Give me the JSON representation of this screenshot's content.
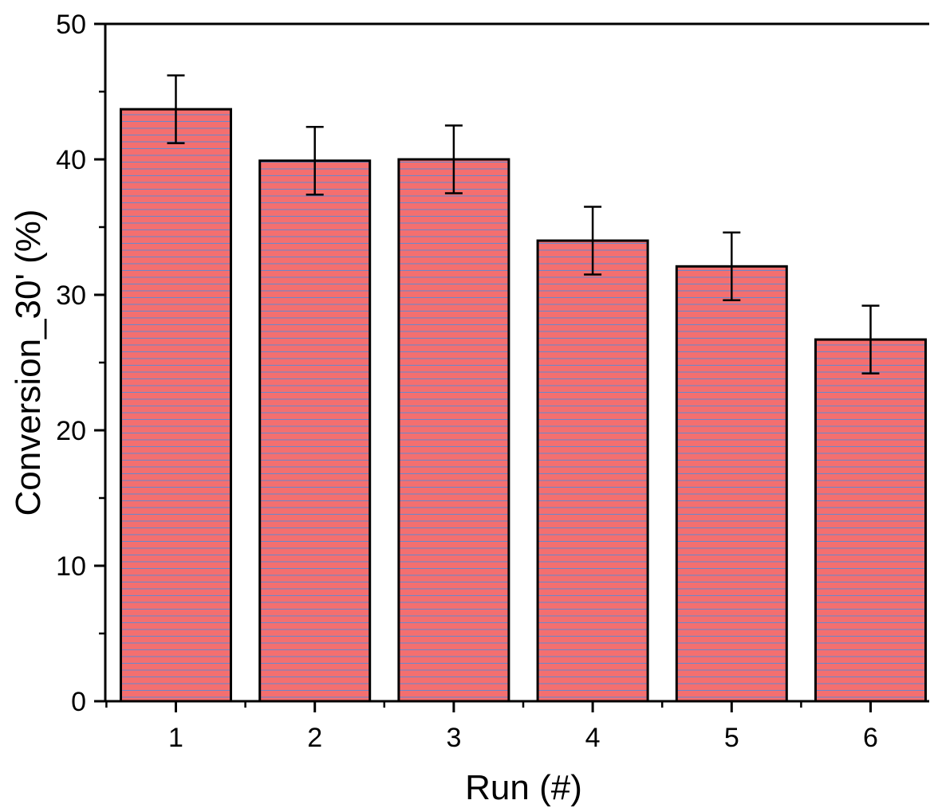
{
  "colors": {
    "bar_fill": "#f46f6f",
    "bar_hatch": "#6f86c8",
    "bar_edge": "#000000",
    "axis": "#000000",
    "background": "#ffffff"
  },
  "chart_data": {
    "type": "bar",
    "title": "",
    "xlabel": "Run (#)",
    "ylabel": "Conversion_30' (%)",
    "categories": [
      "1",
      "2",
      "3",
      "4",
      "5",
      "6"
    ],
    "values": [
      43.7,
      39.9,
      40.0,
      34.0,
      32.1,
      26.7
    ],
    "errors": [
      2.5,
      2.5,
      2.5,
      2.5,
      2.5,
      2.5
    ],
    "ylim": [
      0,
      50
    ],
    "yticks": [
      "0",
      "10",
      "20",
      "30",
      "40",
      "50"
    ],
    "grid": false,
    "legend": "none",
    "bar_pattern": "horizontal-lines"
  }
}
